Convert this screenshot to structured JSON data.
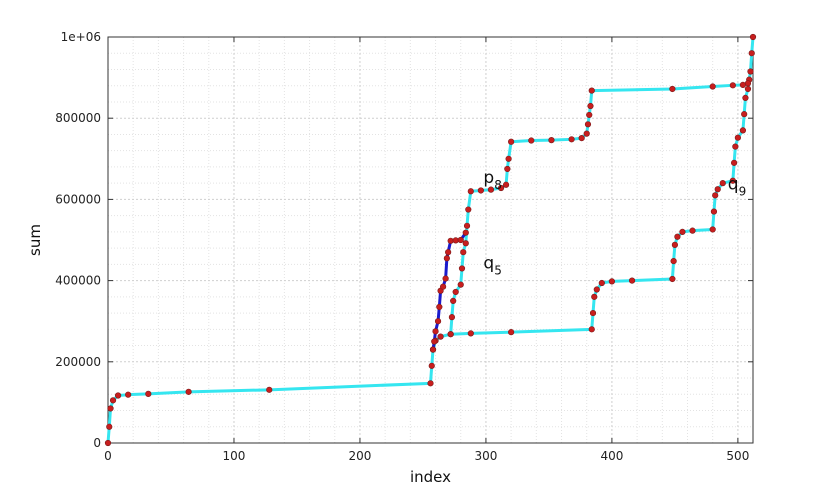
{
  "chart_data": {
    "type": "line",
    "title": "",
    "xlabel": "index",
    "ylabel": "sum",
    "xlim": [
      0,
      512
    ],
    "ylim": [
      0,
      1000000
    ],
    "x_ticks": [
      0,
      100,
      200,
      300,
      400,
      500
    ],
    "x_tick_labels": [
      "0",
      "100",
      "200",
      "300",
      "400",
      "500"
    ],
    "y_ticks": [
      0,
      200000,
      400000,
      600000,
      800000,
      1000000
    ],
    "y_tick_labels": [
      "0",
      "200000",
      "400000",
      "600000",
      "800000",
      "1e+06"
    ],
    "grid": true,
    "colors": {
      "main_path": "#35e6f0",
      "sub_path": "#1a1acc",
      "marker_fill": "#c81e1e",
      "marker_edge": "#7a1a1a"
    },
    "series": [
      {
        "points": [
          [
            0,
            0
          ],
          [
            1,
            40000
          ],
          [
            2,
            85000
          ],
          [
            4,
            105000
          ],
          [
            8,
            117000
          ],
          [
            16,
            119000
          ],
          [
            32,
            121000
          ],
          [
            64,
            126000
          ],
          [
            128,
            131000
          ],
          [
            256,
            147000
          ],
          [
            257,
            190000
          ],
          [
            258,
            230000
          ],
          [
            260,
            252000
          ],
          [
            264,
            262000
          ],
          [
            272,
            268000
          ],
          [
            288,
            270000
          ],
          [
            320,
            273000
          ],
          [
            384,
            280000
          ],
          [
            385,
            320000
          ],
          [
            386,
            360000
          ],
          [
            388,
            378000
          ],
          [
            392,
            394000
          ],
          [
            400,
            398000
          ],
          [
            416,
            400000
          ],
          [
            448,
            404000
          ],
          [
            449,
            448000
          ],
          [
            450,
            488000
          ],
          [
            452,
            508000
          ],
          [
            456,
            520000
          ],
          [
            464,
            523000
          ],
          [
            480,
            526000
          ],
          [
            481,
            570000
          ],
          [
            482,
            610000
          ],
          [
            484,
            625000
          ],
          [
            488,
            640000
          ],
          [
            496,
            646000
          ],
          [
            497,
            690000
          ],
          [
            498,
            730000
          ],
          [
            500,
            752000
          ],
          [
            504,
            770000
          ],
          [
            505,
            810000
          ],
          [
            506,
            850000
          ],
          [
            508,
            872000
          ],
          [
            509,
            895000
          ],
          [
            510,
            915000
          ],
          [
            511,
            960000
          ],
          [
            512,
            1000000
          ]
        ]
      },
      {
        "points": [
          [
            272,
            268000
          ],
          [
            273,
            310000
          ],
          [
            274,
            350000
          ],
          [
            276,
            372000
          ],
          [
            280,
            390000
          ],
          [
            281,
            430000
          ],
          [
            282,
            470000
          ],
          [
            284,
            492000
          ],
          [
            285,
            535000
          ],
          [
            286,
            575000
          ],
          [
            288,
            620000
          ],
          [
            296,
            622000
          ],
          [
            304,
            624000
          ],
          [
            312,
            628000
          ],
          [
            316,
            636000
          ],
          [
            317,
            675000
          ],
          [
            318,
            700000
          ],
          [
            320,
            742000
          ],
          [
            336,
            745000
          ],
          [
            352,
            746000
          ],
          [
            368,
            748000
          ],
          [
            376,
            751000
          ],
          [
            380,
            762000
          ],
          [
            381,
            785000
          ],
          [
            382,
            808000
          ],
          [
            383,
            830000
          ],
          [
            384,
            868000
          ],
          [
            448,
            872000
          ],
          [
            480,
            878000
          ],
          [
            496,
            881000
          ],
          [
            504,
            882000
          ],
          [
            508,
            886000
          ]
        ]
      },
      {
        "points": [
          [
            258,
            230000
          ],
          [
            259,
            250000
          ],
          [
            260,
            275000
          ],
          [
            262,
            300000
          ],
          [
            263,
            335000
          ],
          [
            264,
            375000
          ],
          [
            266,
            385000
          ],
          [
            268,
            405000
          ],
          [
            269,
            455000
          ],
          [
            270,
            470000
          ],
          [
            272,
            498000
          ],
          [
            276,
            499000
          ],
          [
            280,
            500000
          ],
          [
            284,
            518000
          ]
        ]
      }
    ],
    "annotations": [
      {
        "base": "p",
        "sub": "8",
        "x": 298,
        "y": 640000
      },
      {
        "base": "q",
        "sub": "5",
        "x": 298,
        "y": 430000
      },
      {
        "base": "q",
        "sub": "9",
        "x": 492,
        "y": 625000
      }
    ]
  }
}
